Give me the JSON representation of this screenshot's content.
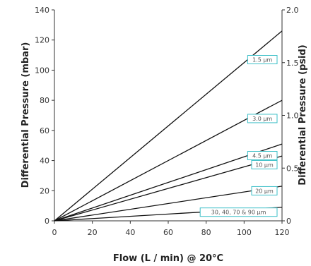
{
  "chart_data": {
    "type": "line",
    "xlabel": "Flow (L / min) @ 20°C",
    "ylabel": "Differential Pressure (mbar)",
    "y2label": "Differential Pressure (psid)",
    "xlim": [
      0,
      120
    ],
    "ylim": [
      0,
      140
    ],
    "y2lim": [
      0,
      2.0
    ],
    "x_ticks": [
      "0",
      "20",
      "40",
      "60",
      "80",
      "100",
      "120"
    ],
    "y_ticks": [
      "0",
      "20",
      "40",
      "60",
      "80",
      "100",
      "120",
      "140"
    ],
    "y2_ticks": [
      "0",
      "0.5",
      "1.0",
      "1.5",
      "2.0"
    ],
    "grid": false,
    "line_color": "#111111",
    "label_border_color": "#3bbfc7",
    "series": [
      {
        "name": "1.5 µm",
        "x": [
          0,
          120
        ],
        "y": [
          0,
          126
        ]
      },
      {
        "name": "3.0 µm",
        "x": [
          0,
          120
        ],
        "y": [
          0,
          80
        ]
      },
      {
        "name": "4.5 µm",
        "x": [
          0,
          120
        ],
        "y": [
          0,
          51
        ]
      },
      {
        "name": "10 µm",
        "x": [
          0,
          120
        ],
        "y": [
          0,
          43
        ]
      },
      {
        "name": "20 µm",
        "x": [
          0,
          120
        ],
        "y": [
          0,
          23
        ]
      },
      {
        "name": "30, 40, 70 & 90 µm",
        "x": [
          0,
          120
        ],
        "y": [
          0,
          9
        ]
      }
    ]
  }
}
